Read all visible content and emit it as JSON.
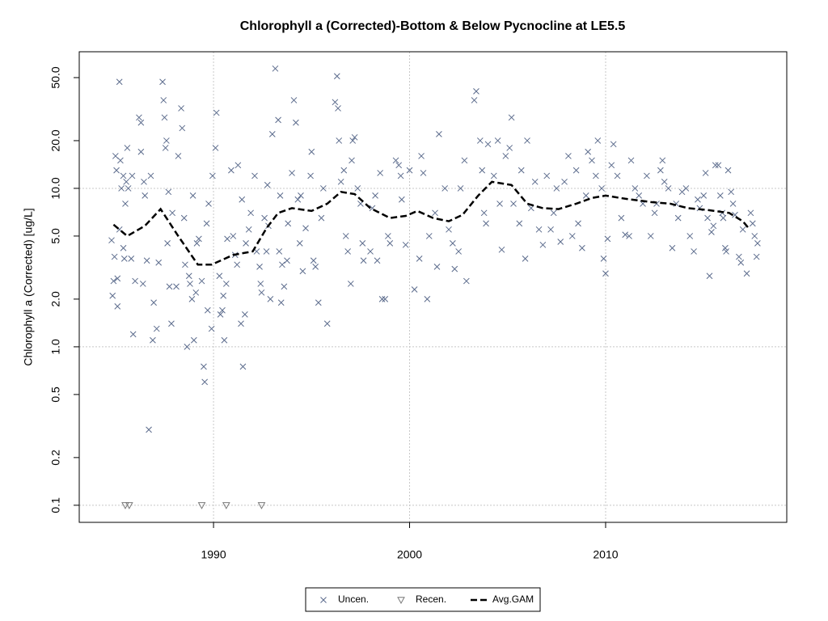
{
  "chart_data": {
    "type": "scatter",
    "title": "Chlorophyll a (Corrected)-Bottom & Below Pycnocline at LE5.5",
    "y_label": "Chlorophyll a (Corrected) [ug/L]",
    "log_y": true,
    "xlim": [
      1983.15,
      2019.24
    ],
    "ylim": [
      0.078,
      72.8
    ],
    "xticks": [
      1990,
      2000,
      2010
    ],
    "yticks": [
      0.1,
      0.2,
      0.5,
      {
        "value": 1,
        "label": "1.0"
      },
      {
        "value": 2,
        "label": "2.0"
      },
      {
        "value": 5,
        "label": "5.0"
      },
      {
        "value": 10,
        "label": "10.0"
      },
      {
        "value": 20,
        "label": "20.0"
      },
      {
        "value": 50,
        "label": "50.0"
      }
    ],
    "ygrid": [
      0.1,
      1,
      10
    ],
    "grid": true,
    "legend": "bottom",
    "series": [
      {
        "name": "Uncen.",
        "marker": "x",
        "color": "#5b6b8c",
        "x": [
          1984.8,
          1984.85,
          1984.9,
          1985.0,
          1985.05,
          1985.1,
          1984.95,
          1985.1,
          1985.2,
          1985.3,
          1985.25,
          1985.2,
          1985.4,
          1985.4,
          1985.45,
          1985.6,
          1985.55,
          1985.5,
          1985.65,
          1985.9,
          1986.0,
          1985.8,
          1985.85,
          1986.2,
          1986.3,
          1986.3,
          1986.4,
          1986.45,
          1986.5,
          1986.7,
          1986.6,
          1986.9,
          1986.95,
          1987.1,
          1986.8,
          1987.2,
          1987.4,
          1987.45,
          1987.5,
          1987.6,
          1987.55,
          1987.7,
          1987.65,
          1987.75,
          1987.85,
          1987.9,
          1988.1,
          1988.2,
          1988.35,
          1988.4,
          1988.5,
          1988.55,
          1988.65,
          1988.75,
          1988.8,
          1988.9,
          1989.0,
          1988.95,
          1989.1,
          1989.15,
          1989.25,
          1989.5,
          1989.55,
          1989.4,
          1989.7,
          1989.75,
          1989.65,
          1989.9,
          1989.95,
          1990.1,
          1990.15,
          1990.3,
          1990.35,
          1990.45,
          1990.5,
          1990.55,
          1990.65,
          1990.9,
          1990.7,
          1991.0,
          1991.1,
          1991.2,
          1991.25,
          1991.45,
          1991.4,
          1991.6,
          1991.5,
          1991.65,
          1991.8,
          1991.9,
          1992.1,
          1992.2,
          1992.35,
          1992.4,
          1992.45,
          1992.6,
          1992.7,
          1992.8,
          1992.75,
          1992.9,
          1993.0,
          1993.15,
          1993.3,
          1993.4,
          1993.35,
          1993.5,
          1993.45,
          1993.6,
          1993.8,
          1993.75,
          1994.0,
          1994.1,
          1994.2,
          1994.3,
          1994.45,
          1994.4,
          1994.55,
          1994.7,
          1995.0,
          1994.95,
          1995.1,
          1995.35,
          1995.2,
          1995.5,
          1995.6,
          1995.8,
          1996.2,
          1996.35,
          1996.3,
          1996.4,
          1996.5,
          1996.65,
          1996.75,
          1996.85,
          1997.0,
          1997.1,
          1997.2,
          1997.05,
          1997.35,
          1997.5,
          1997.6,
          1997.65,
          1998.0,
          1998.1,
          1998.25,
          1998.35,
          1998.5,
          1998.6,
          1998.75,
          1998.9,
          1999.0,
          1999.3,
          1999.45,
          1999.55,
          1999.6,
          1999.8,
          2000.0,
          2000.25,
          2000.6,
          2000.7,
          2000.5,
          2000.9,
          2001.0,
          2001.5,
          2001.3,
          2001.4,
          2001.8,
          2002.0,
          2002.2,
          2002.3,
          2002.5,
          2002.9,
          2002.6,
          2002.8,
          2003.3,
          2003.4,
          2003.6,
          2003.7,
          2003.8,
          2003.9,
          2004.0,
          2004.3,
          2004.5,
          2004.6,
          2004.7,
          2004.9,
          2005.1,
          2005.2,
          2005.3,
          2005.6,
          2005.9,
          2005.7,
          2006.0,
          2006.2,
          2006.4,
          2006.6,
          2006.8,
          2007.0,
          2007.2,
          2007.35,
          2007.5,
          2007.7,
          2007.9,
          2008.1,
          2008.3,
          2008.5,
          2008.6,
          2008.8,
          2009.0,
          2009.1,
          2009.3,
          2009.5,
          2009.6,
          2009.8,
          2009.9,
          2010.0,
          2010.1,
          2010.3,
          2010.4,
          2010.6,
          2010.8,
          2011.0,
          2011.2,
          2011.3,
          2011.5,
          2011.7,
          2011.9,
          2012.1,
          2012.3,
          2012.5,
          2012.6,
          2012.8,
          2012.9,
          2013.0,
          2013.2,
          2013.4,
          2013.6,
          2013.7,
          2013.9,
          2014.1,
          2014.3,
          2014.5,
          2014.7,
          2014.8,
          2015.0,
          2015.1,
          2015.2,
          2015.3,
          2015.4,
          2015.5,
          2015.6,
          2015.75,
          2015.85,
          2015.95,
          2016.0,
          2016.1,
          2016.15,
          2016.25,
          2016.4,
          2016.5,
          2016.6,
          2016.8,
          2016.9,
          2017.0,
          2017.2,
          2017.4,
          2017.5,
          2017.6,
          2017.75,
          2017.7
        ],
        "values": [
          4.7,
          2.1,
          2.6,
          16,
          13,
          2.7,
          3.7,
          1.8,
          47,
          10,
          15,
          5.5,
          12,
          4.2,
          3.6,
          18,
          11,
          8,
          10,
          1.2,
          2.6,
          3.6,
          12,
          28,
          26,
          17,
          2.5,
          11,
          9,
          0.3,
          3.5,
          1.1,
          1.9,
          1.3,
          12,
          3.4,
          47,
          36,
          28,
          20,
          18,
          9.5,
          4.5,
          2.4,
          1.4,
          7,
          2.4,
          16,
          32,
          24,
          6.5,
          3.3,
          1.0,
          2.8,
          2.5,
          2.0,
          1.1,
          9,
          2.2,
          4.5,
          4.8,
          0.75,
          0.6,
          2.6,
          1.7,
          8,
          6,
          1.3,
          12,
          18,
          30,
          2.8,
          1.6,
          1.7,
          2.1,
          1.1,
          2.5,
          13,
          4.8,
          5,
          3.8,
          3.3,
          14,
          8.5,
          1.4,
          1.6,
          0.75,
          4.5,
          5.5,
          7,
          12,
          4,
          3.2,
          2.5,
          2.2,
          6.5,
          4,
          5.8,
          10.5,
          2.0,
          22,
          57,
          27,
          9,
          4,
          3.3,
          1.9,
          2.4,
          6,
          3.5,
          12.5,
          36,
          26,
          8.5,
          9,
          4.5,
          3.0,
          5.6,
          17,
          12,
          3.5,
          1.9,
          3.2,
          6.5,
          10,
          1.4,
          35,
          32,
          51,
          20,
          11,
          13,
          5,
          4,
          2.5,
          20,
          21,
          15,
          10,
          8,
          4.5,
          3.5,
          4.0,
          7.5,
          9,
          3.5,
          12.5,
          2.0,
          2.0,
          5,
          4.5,
          15,
          14,
          12,
          8.5,
          4.4,
          13,
          2.3,
          16,
          12.5,
          3.6,
          2.0,
          5,
          22,
          7,
          3.2,
          10,
          5.5,
          4.5,
          3.1,
          4,
          2.6,
          10,
          15,
          36,
          41,
          20,
          13,
          7,
          6,
          19,
          12,
          20,
          8,
          4.1,
          16,
          18,
          28,
          8,
          6,
          3.6,
          13,
          20,
          7.5,
          11,
          5.5,
          4.4,
          12,
          5.5,
          7,
          10,
          4.6,
          11,
          16,
          5,
          13,
          6,
          4.2,
          9,
          17,
          15,
          12,
          20,
          10,
          3.6,
          2.9,
          4.8,
          14,
          19,
          12,
          6.5,
          5.1,
          5,
          15,
          10,
          9,
          8,
          12,
          5,
          7,
          8,
          13,
          15,
          11,
          10,
          4.2,
          8,
          6.5,
          9.5,
          10,
          5,
          4,
          8.5,
          7.5,
          9,
          12.5,
          6.5,
          2.8,
          5.3,
          5.8,
          14,
          14,
          9,
          7,
          6.5,
          4.2,
          4.0,
          13,
          9.5,
          8,
          6.8,
          3.7,
          3.4,
          5.5,
          2.9,
          7,
          6,
          5,
          4.5,
          3.7
        ]
      },
      {
        "name": "Recen.",
        "marker": "triangle",
        "color": "#777777",
        "x": [
          1985.5,
          1985.7,
          1989.4,
          1990.65,
          1992.45
        ],
        "values": [
          0.1,
          0.1,
          0.1,
          0.1,
          0.1
        ]
      },
      {
        "name": "Avg.GAM",
        "marker": "line",
        "dash": true,
        "color": "#000000",
        "x": [
          1984.9,
          1985.6,
          1986.5,
          1987.3,
          1988.2,
          1989.2,
          1989.9,
          1991.0,
          1992.0,
          1992.7,
          1993.3,
          1994.0,
          1995.0,
          1995.8,
          1996.5,
          1997.2,
          1998.0,
          1999.0,
          1999.8,
          2000.4,
          2001.2,
          2002.0,
          2002.7,
          2003.5,
          2004.2,
          2005.2,
          2006.0,
          2006.8,
          2007.6,
          2008.5,
          2009.3,
          2010.0,
          2011.0,
          2012.3,
          2013.3,
          2014.2,
          2015.2,
          2016.3,
          2017.0,
          2017.3
        ],
        "values": [
          5.9,
          5.0,
          5.8,
          7.4,
          5.0,
          3.3,
          3.3,
          3.8,
          4.0,
          5.6,
          7.0,
          7.5,
          7.2,
          8.0,
          9.5,
          9.2,
          7.5,
          6.5,
          6.7,
          7.2,
          6.5,
          6.2,
          6.8,
          9.0,
          11.0,
          10.5,
          8.0,
          7.5,
          7.4,
          8.0,
          8.7,
          9.0,
          8.6,
          8.2,
          8.0,
          7.5,
          7.3,
          7.0,
          6.2,
          5.6
        ]
      }
    ]
  }
}
